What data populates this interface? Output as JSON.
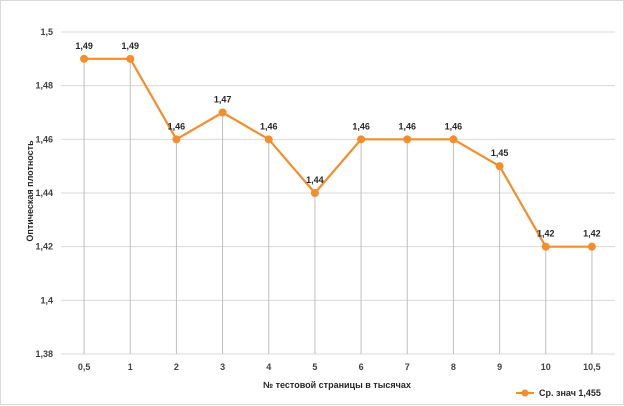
{
  "chart_data": {
    "type": "line",
    "title": "",
    "xlabel": "№ тестовой страницы в тысячах",
    "ylabel": "Оптическая плотность",
    "categories": [
      "0,5",
      "1",
      "2",
      "3",
      "4",
      "5",
      "6",
      "7",
      "8",
      "9",
      "10",
      "10,5"
    ],
    "series": [
      {
        "name": "Ср. знач 1,455",
        "values": [
          1.49,
          1.49,
          1.46,
          1.47,
          1.46,
          1.44,
          1.46,
          1.46,
          1.46,
          1.45,
          1.42,
          1.42
        ],
        "labels": [
          "1,49",
          "1,49",
          "1,46",
          "1,47",
          "1,46",
          "1,44",
          "1,46",
          "1,46",
          "1,46",
          "1,45",
          "1,42",
          "1,42"
        ],
        "color": "#F28E2B"
      }
    ],
    "ylim": [
      1.38,
      1.5
    ],
    "yticks": [
      1.38,
      1.4,
      1.42,
      1.44,
      1.46,
      1.48,
      1.5
    ],
    "ytick_labels": [
      "1,38",
      "1,4",
      "1,42",
      "1,44",
      "1,46",
      "1,48",
      "1,5"
    ],
    "grid": {
      "horizontal": true,
      "vertical_drop_lines": true
    },
    "legend_position": "bottom-right"
  },
  "colors": {
    "line": "#F28E2B",
    "grid": "#d9d9d9",
    "drop_line": "#bfbfbf"
  }
}
